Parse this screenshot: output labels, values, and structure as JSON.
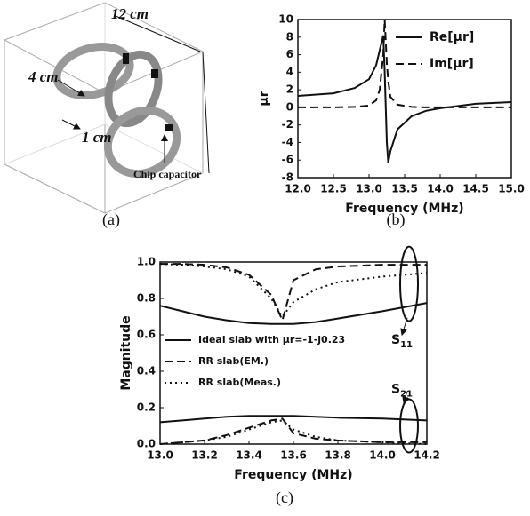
{
  "diagram": {
    "dim_outer": "12 cm",
    "dim_ring": "4 cm",
    "dim_gap": "1 cm",
    "capacitor": "Chip capacitor",
    "caption": "(a)"
  },
  "chart_data": [
    {
      "type": "line",
      "caption": "(b)",
      "x_label": "Frequency (MHz)",
      "y_label": "μr",
      "x": [
        12.0,
        12.5,
        12.8,
        13.0,
        13.1,
        13.15,
        13.2,
        13.22,
        13.25,
        13.27,
        13.3,
        13.4,
        13.6,
        13.8,
        14.0,
        14.5,
        15.0
      ],
      "series": [
        {
          "name": "Re[μr]",
          "color": "#111111",
          "style": "solid",
          "values": [
            1.3,
            1.6,
            2.2,
            3.2,
            4.8,
            6.5,
            8.2,
            4,
            -4,
            -6.3,
            -5,
            -2.5,
            -1.0,
            -0.4,
            -0.1,
            0.4,
            0.6
          ]
        },
        {
          "name": "Im[μr]",
          "color": "#111111",
          "style": "dashed",
          "values": [
            0,
            0,
            0.05,
            0.2,
            0.8,
            2,
            6,
            10,
            5,
            3,
            1.2,
            0.3,
            0.05,
            0,
            0,
            0,
            0
          ]
        }
      ],
      "xlim": [
        12,
        15
      ],
      "ylim": [
        -8,
        10
      ],
      "xticks": [
        {
          "value": 12,
          "label": "12.0"
        },
        12.5,
        {
          "value": 13,
          "label": "13.0"
        },
        13.5,
        {
          "value": 14,
          "label": "14.0"
        },
        14.5,
        {
          "value": 15,
          "label": "15.0"
        }
      ],
      "yticks": [
        -8,
        -6,
        -4,
        -2,
        0,
        2,
        4,
        6,
        8,
        10
      ],
      "legend": "upper-right"
    },
    {
      "type": "line",
      "caption": "(c)",
      "x_label": "Frequency (MHz)",
      "y_label": "Magnitude",
      "x": [
        13.0,
        13.1,
        13.2,
        13.3,
        13.4,
        13.5,
        13.55,
        13.6,
        13.7,
        13.8,
        14.0,
        14.2
      ],
      "series": [
        {
          "name": "Ideal slab with μr=-1-j0.23",
          "color": "#111111",
          "style": "solid",
          "values": [
            0.76,
            0.73,
            0.7,
            0.68,
            0.665,
            0.66,
            0.66,
            0.66,
            0.67,
            0.69,
            0.73,
            0.775
          ]
        },
        {
          "name": "RR slab(EM.)",
          "color": "#111111",
          "style": "dashed",
          "values": [
            0.99,
            0.99,
            0.985,
            0.97,
            0.93,
            0.82,
            0.68,
            0.9,
            0.96,
            0.975,
            0.985,
            0.985
          ]
        },
        {
          "name": "RR slab(Meas.)",
          "color": "#111111",
          "style": "dotted",
          "values": [
            0.99,
            0.985,
            0.975,
            0.96,
            0.92,
            0.8,
            0.7,
            0.78,
            0.85,
            0.89,
            0.92,
            0.94
          ]
        },
        {
          "color": "#111111",
          "style": "solid",
          "values": [
            0.12,
            0.13,
            0.14,
            0.15,
            0.155,
            0.155,
            0.155,
            0.155,
            0.15,
            0.145,
            0.14,
            0.13
          ]
        },
        {
          "color": "#111111",
          "style": "dashed",
          "values": [
            0.0,
            0.01,
            0.02,
            0.05,
            0.09,
            0.13,
            0.14,
            0.06,
            0.03,
            0.02,
            0.01,
            0.01
          ]
        },
        {
          "color": "#111111",
          "style": "dotted",
          "values": [
            0.0,
            0.01,
            0.02,
            0.04,
            0.08,
            0.12,
            0.13,
            0.08,
            0.04,
            0.02,
            0.01,
            0.0
          ]
        }
      ],
      "xlim": [
        13,
        14.2
      ],
      "ylim": [
        0,
        1
      ],
      "xticks": [
        {
          "value": 13,
          "label": "13.0"
        },
        13.2,
        13.4,
        13.6,
        13.8,
        {
          "value": 14,
          "label": "14.0"
        },
        14.2
      ],
      "yticks": [
        {
          "value": 0,
          "label": "0.0"
        },
        0.2,
        0.4,
        0.6,
        0.8,
        {
          "value": 1,
          "label": "1.0"
        }
      ],
      "annotations": [
        {
          "main": "S",
          "sub": "11"
        },
        {
          "main": "S",
          "sub": "21"
        }
      ],
      "legend": "left"
    }
  ]
}
